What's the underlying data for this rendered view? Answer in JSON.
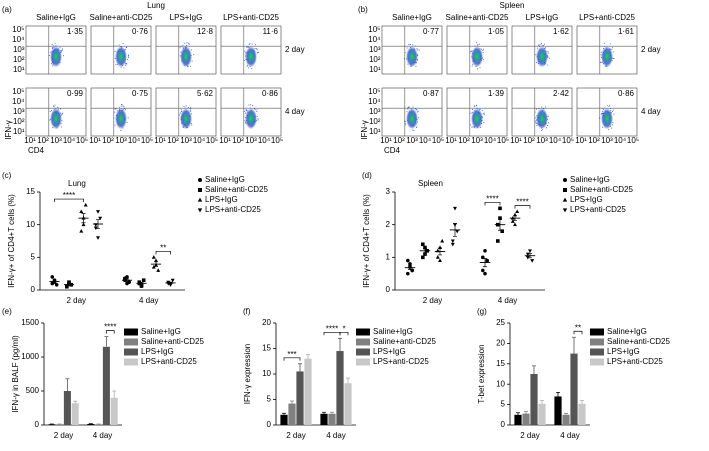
{
  "flow_panels": [
    {
      "label": "(a)",
      "title": "Lung",
      "columns": [
        "Saline+IgG",
        "Saline+anti-CD25",
        "LPS+IgG",
        "LPS+anti-CD25"
      ],
      "rows": [
        "2 day",
        "4 day"
      ],
      "percents": [
        [
          "1·35",
          "0·76",
          "12·8",
          "11·6"
        ],
        [
          "0·99",
          "0·75",
          "5·62",
          "0·86"
        ]
      ],
      "y_label": "IFN-γ",
      "x_label": "CD4",
      "axis_ticks": [
        "10¹",
        "10²",
        "10³",
        "10⁴",
        "10⁵"
      ]
    },
    {
      "label": "(b)",
      "title": "Spleen",
      "columns": [
        "Saline+IgG",
        "Saline+anti-CD25",
        "LPS+IgG",
        "LPS+anti-CD25"
      ],
      "rows": [
        "2 day",
        "4 day"
      ],
      "percents": [
        [
          "0·77",
          "1·05",
          "1·62",
          "1·61"
        ],
        [
          "0·87",
          "1·39",
          "2·42",
          "0·86"
        ]
      ],
      "y_label": "IFN-γ",
      "x_label": "CD4",
      "axis_ticks": [
        "10¹",
        "10²",
        "10³",
        "10⁴",
        "10⁵"
      ]
    }
  ],
  "chart_data": [
    {
      "type": "dot",
      "label": "(c)",
      "title": "Lung",
      "y_label": "IFN-γ+ of CD4+T cells (%)",
      "categories": [
        "2 day",
        "4 day"
      ],
      "ylim": [
        0,
        15
      ],
      "yticks": [
        0,
        5,
        10,
        15
      ],
      "series": [
        {
          "name": "Saline+IgG",
          "marker": "circle",
          "color": "#000000",
          "values": [
            [
              1.0,
              1.5,
              0.8,
              2.0,
              1.2
            ],
            [
              1.5,
              2.0,
              1.2,
              1.8,
              1.0
            ]
          ]
        },
        {
          "name": "Saline+anti-CD25",
          "marker": "square",
          "color": "#000000",
          "values": [
            [
              0.6,
              1.0,
              0.8,
              0.5,
              1.2
            ],
            [
              1.2,
              0.8,
              1.5,
              1.0,
              0.6
            ]
          ]
        },
        {
          "name": "LPS+IgG",
          "marker": "triangle-up",
          "color": "#000000",
          "values": [
            [
              12,
              10,
              13,
              9,
              11
            ],
            [
              3.5,
              4.5,
              3,
              5,
              3.8
            ]
          ]
        },
        {
          "name": "LPS+anti-CD25",
          "marker": "triangle-down",
          "color": "#000000",
          "values": [
            [
              10,
              8,
              11,
              9.5,
              12
            ],
            [
              1,
              0.8,
              1.5,
              1.2,
              0.9
            ]
          ]
        }
      ],
      "annotations": [
        {
          "text": "****",
          "category": "2 day",
          "between": [
            "Saline+IgG",
            "LPS+IgG"
          ]
        },
        {
          "text": "**",
          "category": "4 day",
          "between": [
            "LPS+IgG",
            "LPS+anti-CD25"
          ]
        }
      ]
    },
    {
      "type": "dot",
      "label": "(d)",
      "title": "Spleen",
      "y_label": "IFN-γ+ of CD4+T cells (%)",
      "categories": [
        "2 day",
        "4 day"
      ],
      "ylim": [
        0,
        3
      ],
      "yticks": [
        0,
        1,
        2,
        3
      ],
      "series": [
        {
          "name": "Saline+IgG",
          "marker": "circle",
          "color": "#000000",
          "values": [
            [
              0.5,
              0.8,
              0.6,
              0.9,
              0.7,
              0.6
            ],
            [
              1.0,
              0.5,
              0.9,
              0.6,
              1.2
            ]
          ]
        },
        {
          "name": "Saline+anti-CD25",
          "marker": "square",
          "color": "#000000",
          "values": [
            [
              1.0,
              1.3,
              1.2,
              1.4,
              1.1
            ],
            [
              2.0,
              2.5,
              1.8,
              1.5,
              2.2
            ]
          ]
        },
        {
          "name": "LPS+IgG",
          "marker": "triangle-up",
          "color": "#000000",
          "values": [
            [
              1.0,
              1.3,
              1.5,
              1.2,
              0.9
            ],
            [
              2.2,
              2.0,
              2.4,
              2.1,
              2.3
            ]
          ]
        },
        {
          "name": "LPS+anti-CD25",
          "marker": "triangle-down",
          "color": "#000000",
          "values": [
            [
              1.5,
              2.0,
              1.8,
              1.4,
              2.5
            ],
            [
              1.0,
              1.2,
              0.9,
              1.1
            ]
          ]
        }
      ],
      "annotations": [
        {
          "text": "****",
          "category": "4 day",
          "between": [
            "Saline+IgG",
            "Saline+anti-CD25"
          ]
        },
        {
          "text": "****",
          "category": "4 day",
          "between": [
            "LPS+IgG",
            "LPS+anti-CD25"
          ]
        }
      ]
    },
    {
      "type": "bar",
      "label": "(e)",
      "y_label": "IFN-γ in BALF (pg/ml)",
      "categories": [
        "2 day",
        "4 day"
      ],
      "ylim": [
        0,
        1500
      ],
      "yticks": [
        0,
        500,
        1000,
        1500
      ],
      "series": [
        {
          "name": "Saline+IgG",
          "color": "#000000",
          "values": [
            10,
            15
          ],
          "errors": [
            5,
            5
          ]
        },
        {
          "name": "Saline+anti-CD25",
          "color": "#808080",
          "values": [
            10,
            10
          ],
          "errors": [
            5,
            5
          ]
        },
        {
          "name": "LPS+IgG",
          "color": "#555555",
          "values": [
            500,
            1150
          ],
          "errors": [
            180,
            150
          ]
        },
        {
          "name": "LPS+anti-CD25",
          "color": "#c8c8c8",
          "values": [
            320,
            400
          ],
          "errors": [
            30,
            100
          ]
        }
      ],
      "annotations": [
        {
          "text": "****",
          "category": "4 day",
          "between": [
            "LPS+IgG",
            "LPS+anti-CD25"
          ]
        }
      ]
    },
    {
      "type": "bar",
      "label": "(f)",
      "y_label": "IFN-γ expression",
      "categories": [
        "2 day",
        "4 day"
      ],
      "ylim": [
        0,
        20
      ],
      "yticks": [
        0,
        5,
        10,
        15,
        20
      ],
      "series": [
        {
          "name": "Saline+IgG",
          "color": "#000000",
          "values": [
            2,
            2.2
          ],
          "errors": [
            0.3,
            0.3
          ]
        },
        {
          "name": "Saline+anti-CD25",
          "color": "#808080",
          "values": [
            4.2,
            2.2
          ],
          "errors": [
            0.5,
            0.3
          ]
        },
        {
          "name": "LPS+IgG",
          "color": "#555555",
          "values": [
            10.5,
            14.5
          ],
          "errors": [
            1.5,
            2.5
          ]
        },
        {
          "name": "LPS+anti-CD25",
          "color": "#c8c8c8",
          "values": [
            13,
            8.2
          ],
          "errors": [
            0.8,
            1
          ]
        }
      ],
      "annotations": [
        {
          "text": "***",
          "category": "2 day",
          "between": [
            "Saline+IgG",
            "LPS+IgG"
          ]
        },
        {
          "text": "****",
          "category": "4 day",
          "between": [
            "Saline+IgG",
            "LPS+IgG"
          ]
        },
        {
          "text": "*",
          "category": "4 day",
          "between": [
            "LPS+IgG",
            "LPS+anti-CD25"
          ]
        }
      ]
    },
    {
      "type": "bar",
      "label": "(g)",
      "y_label": "T-bet expression",
      "categories": [
        "2 day",
        "4 day"
      ],
      "ylim": [
        0,
        25
      ],
      "yticks": [
        0,
        5,
        10,
        15,
        20,
        25
      ],
      "series": [
        {
          "name": "Saline+IgG",
          "color": "#000000",
          "values": [
            2.5,
            7
          ],
          "errors": [
            0.5,
            1
          ]
        },
        {
          "name": "Saline+anti-CD25",
          "color": "#808080",
          "values": [
            2.8,
            2.5
          ],
          "errors": [
            0.5,
            0.3
          ]
        },
        {
          "name": "LPS+IgG",
          "color": "#555555",
          "values": [
            12.5,
            17.5
          ],
          "errors": [
            2,
            4
          ]
        },
        {
          "name": "LPS+anti-CD25",
          "color": "#c8c8c8",
          "values": [
            5.2,
            5.2
          ],
          "errors": [
            0.8,
            0.8
          ]
        }
      ],
      "annotations": [
        {
          "text": "**",
          "category": "4 day",
          "between": [
            "LPS+IgG",
            "LPS+anti-CD25"
          ]
        }
      ]
    }
  ]
}
